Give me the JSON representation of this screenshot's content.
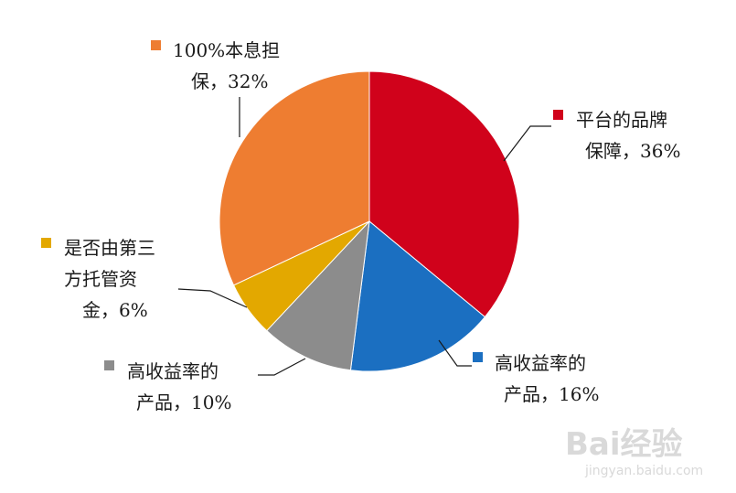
{
  "chart_data": {
    "type": "pie",
    "categories": [
      "平台的品牌保障",
      "高收益率的产品",
      "高收益率的产品",
      "是否由第三方托管资金",
      "100%本息担保"
    ],
    "values": [
      36,
      16,
      10,
      6,
      32
    ],
    "colors": [
      "#d0021b",
      "#1b6fc1",
      "#8c8c8c",
      "#e3a800",
      "#ee7d31"
    ],
    "labels": [
      {
        "lines": [
          "平台的品牌",
          "保障，36%"
        ]
      },
      {
        "lines": [
          "高收益率的",
          "产品，16%"
        ]
      },
      {
        "lines": [
          "高收益率的",
          "产品，10%"
        ]
      },
      {
        "lines": [
          "是否由第三",
          "方托管资",
          "金，6%"
        ]
      },
      {
        "lines": [
          "100%本息担",
          "保，32%"
        ]
      }
    ]
  },
  "watermark": {
    "brand": "Bai经验",
    "url": "jingyan.baidu.com"
  }
}
